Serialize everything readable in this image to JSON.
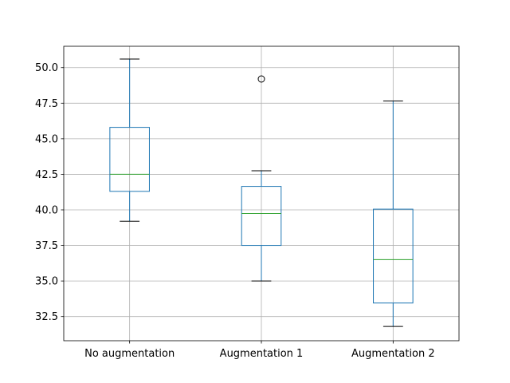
{
  "chart_data": {
    "type": "boxplot",
    "title": "",
    "xlabel": "",
    "ylabel": "",
    "ylim": [
      30.8,
      51.5
    ],
    "yticks": [
      32.5,
      35.0,
      37.5,
      40.0,
      42.5,
      45.0,
      47.5,
      50.0
    ],
    "ytick_labels": [
      "32.5",
      "35.0",
      "37.5",
      "40.0",
      "42.5",
      "45.0",
      "47.5",
      "50.0"
    ],
    "grid": true,
    "categories": [
      "No augmentation",
      "Augmentation 1",
      "Augmentation 2"
    ],
    "boxes": [
      {
        "whisker_low": 39.2,
        "q1": 41.3,
        "median": 42.5,
        "q3": 45.8,
        "whisker_high": 50.6,
        "outliers": []
      },
      {
        "whisker_low": 35.0,
        "q1": 37.5,
        "median": 39.75,
        "q3": 41.65,
        "whisker_high": 42.75,
        "outliers": [
          49.2
        ]
      },
      {
        "whisker_low": 31.8,
        "q1": 33.45,
        "median": 36.5,
        "q3": 40.05,
        "whisker_high": 47.65,
        "outliers": []
      }
    ],
    "colors": {
      "box": "#1f77b4",
      "median": "#2ca02c",
      "whisker_cap": "#000000",
      "grid": "#b0b0b0",
      "outlier": "#000000"
    }
  }
}
